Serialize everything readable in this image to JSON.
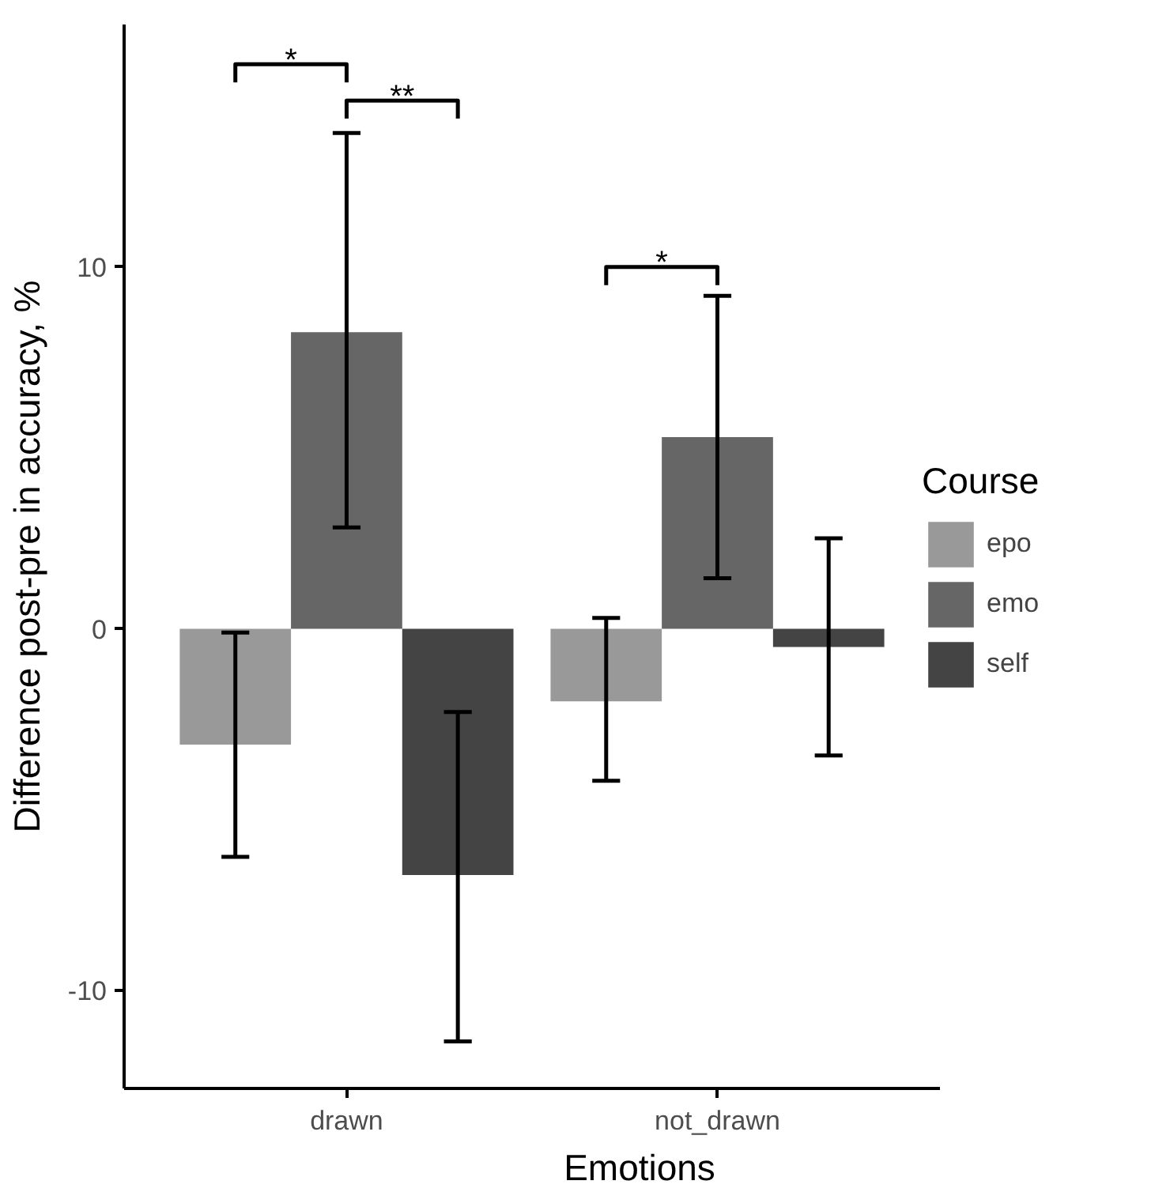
{
  "chart_data": {
    "type": "bar",
    "xlabel": "Emotions",
    "ylabel": "Difference post-pre in accuracy, %",
    "legend_title": "Course",
    "legend": "right",
    "categories": [
      "drawn",
      "not_drawn"
    ],
    "ylim": [
      -12.7,
      16.7
    ],
    "yticks": [
      -10,
      0,
      10
    ],
    "grid": false,
    "series": [
      {
        "name": "epo",
        "color": "#999999",
        "values": [
          -3.2,
          -2.0
        ],
        "errors": [
          [
            -6.3,
            -0.1
          ],
          [
            -4.2,
            0.3
          ]
        ]
      },
      {
        "name": "emo",
        "color": "#666666",
        "values": [
          8.2,
          5.3
        ],
        "errors": [
          [
            2.8,
            13.7
          ],
          [
            1.4,
            9.2
          ]
        ]
      },
      {
        "name": "self",
        "color": "#444444",
        "values": [
          -6.8,
          -0.5
        ],
        "errors": [
          [
            -11.4,
            -2.3
          ],
          [
            -3.5,
            2.5
          ]
        ]
      }
    ],
    "annotations": [
      "*",
      "**",
      "*"
    ]
  }
}
